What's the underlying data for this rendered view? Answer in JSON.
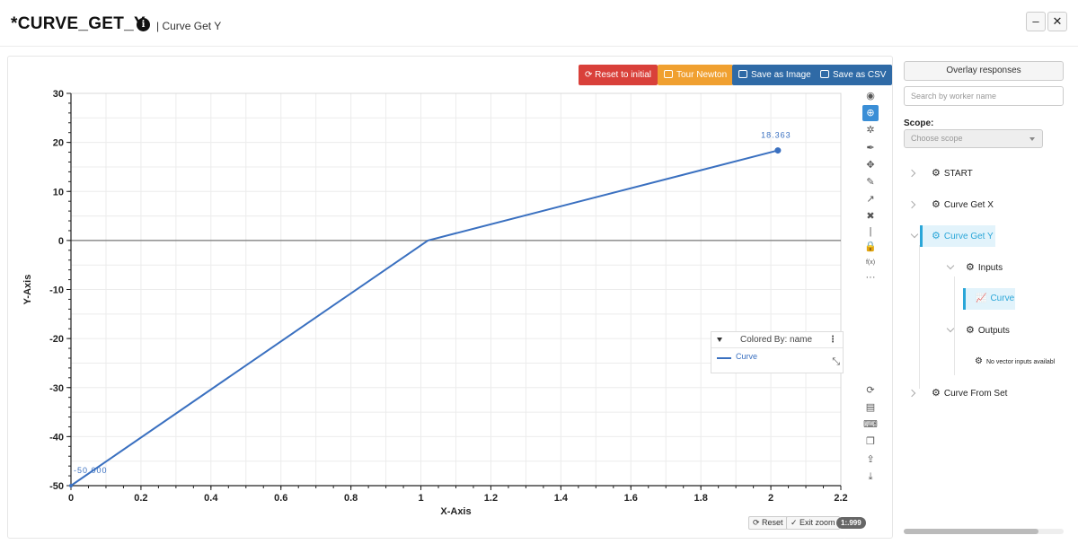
{
  "header": {
    "title": "*CURVE_GET_Y",
    "info_glyph": "i",
    "subtitle": "| Curve Get Y",
    "minimize_glyph": "–",
    "close_glyph": "✕"
  },
  "toolbar": {
    "reset_label": "Reset to initial",
    "tour_label": "Tour Newton",
    "save_image_label": "Save as Image",
    "save_csv_label": "Save as CSV",
    "colors": {
      "reset": "#d9403a",
      "tour": "#f0a030",
      "save_image": "#2f6aa6",
      "save_csv": "#2f6aa6"
    }
  },
  "side_tools": [
    "eye-icon",
    "zoom-icon",
    "settings-icon",
    "pen-icon",
    "move-icon",
    "pencil-icon",
    "arrow-icon",
    "tools-icon",
    "divider-icon",
    "lock-icon",
    "fx-icon",
    "more-icon"
  ],
  "side_tools_bottom": [
    "refresh-icon",
    "save-icon",
    "keyboard-icon",
    "copy-icon",
    "upload-icon",
    "download-icon"
  ],
  "fx_label": "f(x)",
  "chart_data": {
    "type": "line",
    "xlabel": "X-Axis",
    "ylabel": "Y-Axis",
    "xlim": [
      0,
      2.2
    ],
    "ylim": [
      -50,
      30
    ],
    "x_ticks": [
      "0",
      "0.2",
      "0.4",
      "0.6",
      "0.8",
      "1",
      "1.2",
      "1.4",
      "1.6",
      "1.8",
      "2",
      "2.2"
    ],
    "y_ticks": [
      "30",
      "20",
      "10",
      "0",
      "-10",
      "-20",
      "-30",
      "-40",
      "-50"
    ],
    "grid": true,
    "series": [
      {
        "name": "Curve",
        "color": "#3a70c0",
        "x": [
          0,
          1.02,
          2.02
        ],
        "y": [
          -50,
          0,
          18.363
        ]
      }
    ],
    "annotations": [
      {
        "text": "18.363",
        "x": 2.02,
        "y": 18.363
      },
      {
        "text": "-50.000",
        "x": 0,
        "y": -50
      }
    ]
  },
  "legend": {
    "header": "Colored By: name",
    "menu_glyph": "⋮",
    "item": "Curve",
    "resize_glyph": "⤡"
  },
  "bottom_bar": {
    "reset_label": "Reset",
    "exit_zoom_label": "Exit zoom",
    "ratio_label": "1:.999"
  },
  "right_panel": {
    "overlay_label": "Overlay responses",
    "search_placeholder": "Search by worker name",
    "scope_label": "Scope:",
    "scope_placeholder": "Choose scope",
    "tree": {
      "start": "START",
      "curve_get_x": "Curve Get X",
      "curve_get_y": "Curve Get Y",
      "inputs": "Inputs",
      "curve": "Curve",
      "outputs": "Outputs",
      "no_vector": "No vector inputs availabl",
      "curve_from_set": "Curve From Set"
    },
    "accent": "#2aa6d8"
  }
}
